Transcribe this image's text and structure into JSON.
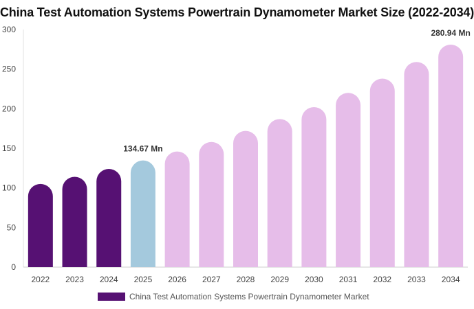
{
  "chart_data": {
    "type": "bar",
    "title": "China Test Automation Systems Powertrain Dynamometer Market Size (2022-2034)",
    "xlabel": "",
    "ylabel": "",
    "ylim": [
      0,
      300
    ],
    "yticks": [
      0,
      50,
      100,
      150,
      200,
      250,
      300
    ],
    "grid": false,
    "legend_position": "bottom",
    "categories": [
      "2022",
      "2023",
      "2024",
      "2025",
      "2026",
      "2027",
      "2028",
      "2029",
      "2030",
      "2031",
      "2032",
      "2033",
      "2034"
    ],
    "series": [
      {
        "name": "China Test Automation Systems Powertrain Dynamometer Market",
        "values": [
          105,
          114,
          124,
          134.67,
          146,
          158,
          172,
          187,
          202,
          220,
          238,
          259,
          280.94
        ]
      }
    ],
    "bar_colors": [
      "#561173",
      "#561173",
      "#561173",
      "#a4c9dd",
      "#e6bde9",
      "#e6bde9",
      "#e6bde9",
      "#e6bde9",
      "#e6bde9",
      "#e6bde9",
      "#e6bde9",
      "#e6bde9",
      "#e6bde9"
    ],
    "data_labels": [
      {
        "category": "2025",
        "text": "134.67 Mn"
      },
      {
        "category": "2034",
        "text": "280.94 Mn"
      }
    ],
    "legend": {
      "label": "China Test Automation Systems Powertrain Dynamometer Market",
      "color": "#561173"
    }
  }
}
